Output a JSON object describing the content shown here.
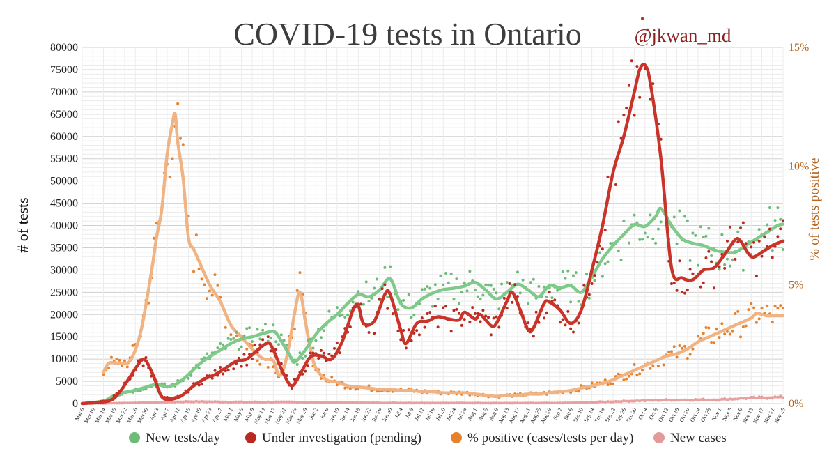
{
  "chart_data": {
    "type": "line",
    "title": "COVID-19 tests in Ontario",
    "handle": "@jkwan_md",
    "ylabel": "# of tests",
    "y2label": "% of tests positive",
    "ylim": [
      0,
      80000
    ],
    "y2lim": [
      0,
      15
    ],
    "yticks": [
      0,
      5000,
      10000,
      15000,
      20000,
      25000,
      30000,
      35000,
      40000,
      45000,
      50000,
      55000,
      60000,
      65000,
      70000,
      75000,
      80000
    ],
    "y2ticks": [
      {
        "value": 0,
        "label": "0%"
      },
      {
        "value": 5,
        "label": "5%"
      },
      {
        "value": 10,
        "label": "10%"
      },
      {
        "value": 15,
        "label": "15%"
      }
    ],
    "x_range_days": [
      0,
      264
    ],
    "xticks": [
      {
        "day": 0,
        "label": "Mar 6"
      },
      {
        "day": 4,
        "label": "Mar 10"
      },
      {
        "day": 8,
        "label": "Mar 14"
      },
      {
        "day": 12,
        "label": "Mar 18"
      },
      {
        "day": 16,
        "label": "Mar 22"
      },
      {
        "day": 20,
        "label": "Mar 26"
      },
      {
        "day": 24,
        "label": "Mar 30"
      },
      {
        "day": 28,
        "label": "Apr 3"
      },
      {
        "day": 32,
        "label": "Apr 7"
      },
      {
        "day": 36,
        "label": "Apr 11"
      },
      {
        "day": 40,
        "label": "Apr 15"
      },
      {
        "day": 44,
        "label": "Apr 19"
      },
      {
        "day": 48,
        "label": "Apr 23"
      },
      {
        "day": 52,
        "label": "Apr 27"
      },
      {
        "day": 56,
        "label": "May 1"
      },
      {
        "day": 60,
        "label": "May 5"
      },
      {
        "day": 64,
        "label": "May 9"
      },
      {
        "day": 68,
        "label": "May 13"
      },
      {
        "day": 72,
        "label": "May 17"
      },
      {
        "day": 76,
        "label": "May 21"
      },
      {
        "day": 80,
        "label": "May 25"
      },
      {
        "day": 84,
        "label": "May 29"
      },
      {
        "day": 88,
        "label": "Jun 2"
      },
      {
        "day": 92,
        "label": "Jun 6"
      },
      {
        "day": 96,
        "label": "Jun 10"
      },
      {
        "day": 100,
        "label": "Jun 14"
      },
      {
        "day": 104,
        "label": "Jun 18"
      },
      {
        "day": 108,
        "label": "Jun 22"
      },
      {
        "day": 112,
        "label": "Jun 26"
      },
      {
        "day": 116,
        "label": "Jun 30"
      },
      {
        "day": 120,
        "label": "Jul 4"
      },
      {
        "day": 124,
        "label": "Jul 8"
      },
      {
        "day": 128,
        "label": "Jul 12"
      },
      {
        "day": 132,
        "label": "Jul 16"
      },
      {
        "day": 136,
        "label": "Jul 20"
      },
      {
        "day": 140,
        "label": "Jul 24"
      },
      {
        "day": 144,
        "label": "Jul 28"
      },
      {
        "day": 148,
        "label": "Aug 1"
      },
      {
        "day": 152,
        "label": "Aug 5"
      },
      {
        "day": 156,
        "label": "Aug 9"
      },
      {
        "day": 160,
        "label": "Aug 13"
      },
      {
        "day": 164,
        "label": "Aug 17"
      },
      {
        "day": 168,
        "label": "Aug 21"
      },
      {
        "day": 172,
        "label": "Aug 25"
      },
      {
        "day": 176,
        "label": "Aug 29"
      },
      {
        "day": 180,
        "label": "Sep 2"
      },
      {
        "day": 184,
        "label": "Sep 6"
      },
      {
        "day": 188,
        "label": "Sep 10"
      },
      {
        "day": 192,
        "label": "Sep 14"
      },
      {
        "day": 196,
        "label": "Sep 18"
      },
      {
        "day": 200,
        "label": "Sep 22"
      },
      {
        "day": 204,
        "label": "Sep 26"
      },
      {
        "day": 208,
        "label": "Sep 30"
      },
      {
        "day": 212,
        "label": "Oct 4"
      },
      {
        "day": 216,
        "label": "Oct 8"
      },
      {
        "day": 220,
        "label": "Oct 12"
      },
      {
        "day": 224,
        "label": "Oct 16"
      },
      {
        "day": 228,
        "label": "Oct 20"
      },
      {
        "day": 232,
        "label": "Oct 24"
      },
      {
        "day": 236,
        "label": "Oct 28"
      },
      {
        "day": 240,
        "label": "Nov 1"
      },
      {
        "day": 244,
        "label": "Nov 5"
      },
      {
        "day": 248,
        "label": "Nov 9"
      },
      {
        "day": 252,
        "label": "Nov 13"
      },
      {
        "day": 256,
        "label": "Nov 17"
      },
      {
        "day": 260,
        "label": "Nov 21"
      },
      {
        "day": 264,
        "label": "Nov 25"
      }
    ],
    "series": [
      {
        "name": "New tests/day",
        "axis": "left",
        "color": "#7fc98a",
        "dot_color": "#6dbb78",
        "points": [
          [
            0,
            0
          ],
          [
            8,
            600
          ],
          [
            12,
            1800
          ],
          [
            16,
            2500
          ],
          [
            20,
            3000
          ],
          [
            24,
            3700
          ],
          [
            28,
            4300
          ],
          [
            32,
            3800
          ],
          [
            36,
            4600
          ],
          [
            40,
            6500
          ],
          [
            44,
            8800
          ],
          [
            48,
            10500
          ],
          [
            52,
            12000
          ],
          [
            56,
            13500
          ],
          [
            60,
            14500
          ],
          [
            64,
            15000
          ],
          [
            68,
            15700
          ],
          [
            72,
            16200
          ],
          [
            74,
            15000
          ],
          [
            78,
            11000
          ],
          [
            80,
            9300
          ],
          [
            84,
            12000
          ],
          [
            88,
            15500
          ],
          [
            92,
            18000
          ],
          [
            96,
            20000
          ],
          [
            100,
            22500
          ],
          [
            104,
            24500
          ],
          [
            108,
            24000
          ],
          [
            112,
            25500
          ],
          [
            116,
            28000
          ],
          [
            120,
            22500
          ],
          [
            124,
            21500
          ],
          [
            128,
            23500
          ],
          [
            132,
            24800
          ],
          [
            136,
            25600
          ],
          [
            140,
            25900
          ],
          [
            144,
            26400
          ],
          [
            148,
            27200
          ],
          [
            152,
            25500
          ],
          [
            156,
            23500
          ],
          [
            160,
            25000
          ],
          [
            164,
            26800
          ],
          [
            168,
            25500
          ],
          [
            172,
            24000
          ],
          [
            176,
            26500
          ],
          [
            180,
            26000
          ],
          [
            184,
            26500
          ],
          [
            188,
            25000
          ],
          [
            192,
            28500
          ],
          [
            196,
            32500
          ],
          [
            200,
            35500
          ],
          [
            204,
            38000
          ],
          [
            208,
            40200
          ],
          [
            212,
            39800
          ],
          [
            216,
            42000
          ],
          [
            218,
            43800
          ],
          [
            222,
            40000
          ],
          [
            226,
            37000
          ],
          [
            230,
            36000
          ],
          [
            234,
            35500
          ],
          [
            238,
            34500
          ],
          [
            242,
            34000
          ],
          [
            246,
            34000
          ],
          [
            250,
            35500
          ],
          [
            254,
            37000
          ],
          [
            258,
            38500
          ],
          [
            262,
            40000
          ],
          [
            264,
            40300
          ]
        ]
      },
      {
        "name": "Under investigation (pending)",
        "axis": "left",
        "color": "#c8342a",
        "dot_color": "#b8291f",
        "points": [
          [
            0,
            0
          ],
          [
            10,
            600
          ],
          [
            14,
            2500
          ],
          [
            18,
            6000
          ],
          [
            22,
            9500
          ],
          [
            24,
            9600
          ],
          [
            27,
            6000
          ],
          [
            30,
            1500
          ],
          [
            34,
            1000
          ],
          [
            38,
            2000
          ],
          [
            42,
            4000
          ],
          [
            46,
            5500
          ],
          [
            50,
            6500
          ],
          [
            54,
            8000
          ],
          [
            58,
            9500
          ],
          [
            62,
            10000
          ],
          [
            66,
            12000
          ],
          [
            70,
            13600
          ],
          [
            72,
            12000
          ],
          [
            76,
            6500
          ],
          [
            79,
            4000
          ],
          [
            82,
            6500
          ],
          [
            86,
            10500
          ],
          [
            90,
            10700
          ],
          [
            94,
            10000
          ],
          [
            98,
            14000
          ],
          [
            102,
            21000
          ],
          [
            104,
            22000
          ],
          [
            106,
            18000
          ],
          [
            110,
            18500
          ],
          [
            114,
            24500
          ],
          [
            116,
            24500
          ],
          [
            120,
            16500
          ],
          [
            122,
            13500
          ],
          [
            126,
            18000
          ],
          [
            130,
            18500
          ],
          [
            134,
            19500
          ],
          [
            138,
            19000
          ],
          [
            142,
            18800
          ],
          [
            144,
            20500
          ],
          [
            148,
            19000
          ],
          [
            150,
            20000
          ],
          [
            154,
            17500
          ],
          [
            156,
            18000
          ],
          [
            160,
            23000
          ],
          [
            162,
            25000
          ],
          [
            165,
            21000
          ],
          [
            168,
            16500
          ],
          [
            170,
            17000
          ],
          [
            174,
            22500
          ],
          [
            176,
            22800
          ],
          [
            180,
            21000
          ],
          [
            184,
            18000
          ],
          [
            188,
            21000
          ],
          [
            192,
            30000
          ],
          [
            196,
            40000
          ],
          [
            200,
            52000
          ],
          [
            204,
            60000
          ],
          [
            208,
            70000
          ],
          [
            210,
            75000
          ],
          [
            212,
            76000
          ],
          [
            214,
            72000
          ],
          [
            218,
            55000
          ],
          [
            222,
            30500
          ],
          [
            226,
            28200
          ],
          [
            230,
            27800
          ],
          [
            234,
            30000
          ],
          [
            238,
            30500
          ],
          [
            242,
            33500
          ],
          [
            246,
            36800
          ],
          [
            248,
            36500
          ],
          [
            252,
            33000
          ],
          [
            256,
            34000
          ],
          [
            260,
            35500
          ],
          [
            264,
            36500
          ]
        ]
      },
      {
        "name": "% positive (cases/tests per day)",
        "axis": "right",
        "color": "#f0b384",
        "dot_color": "#e8822a",
        "points": [
          [
            8,
            1.3
          ],
          [
            10,
            1.7
          ],
          [
            14,
            1.7
          ],
          [
            18,
            1.8
          ],
          [
            22,
            3.0
          ],
          [
            26,
            5.5
          ],
          [
            28,
            7.0
          ],
          [
            30,
            8.2
          ],
          [
            32,
            10.5
          ],
          [
            34,
            11.8
          ],
          [
            35,
            12.2
          ],
          [
            36,
            11.0
          ],
          [
            38,
            9.5
          ],
          [
            40,
            7.0
          ],
          [
            42,
            6.5
          ],
          [
            44,
            6.0
          ],
          [
            48,
            5.0
          ],
          [
            52,
            4.3
          ],
          [
            56,
            3.3
          ],
          [
            60,
            2.8
          ],
          [
            64,
            2.3
          ],
          [
            68,
            1.9
          ],
          [
            72,
            1.8
          ],
          [
            74,
            1.2
          ],
          [
            76,
            1.5
          ],
          [
            78,
            2.5
          ],
          [
            80,
            3.8
          ],
          [
            82,
            4.7
          ],
          [
            84,
            3.5
          ],
          [
            86,
            2.3
          ],
          [
            88,
            1.5
          ],
          [
            92,
            1.0
          ],
          [
            96,
            0.9
          ],
          [
            100,
            0.75
          ],
          [
            104,
            0.7
          ],
          [
            108,
            0.65
          ],
          [
            112,
            0.6
          ],
          [
            116,
            0.6
          ],
          [
            120,
            0.55
          ],
          [
            124,
            0.55
          ],
          [
            128,
            0.5
          ],
          [
            132,
            0.5
          ],
          [
            136,
            0.45
          ],
          [
            140,
            0.45
          ],
          [
            144,
            0.45
          ],
          [
            148,
            0.4
          ],
          [
            152,
            0.35
          ],
          [
            156,
            0.3
          ],
          [
            160,
            0.35
          ],
          [
            164,
            0.35
          ],
          [
            168,
            0.4
          ],
          [
            172,
            0.4
          ],
          [
            176,
            0.45
          ],
          [
            180,
            0.5
          ],
          [
            184,
            0.55
          ],
          [
            188,
            0.65
          ],
          [
            192,
            0.75
          ],
          [
            196,
            0.85
          ],
          [
            200,
            1.0
          ],
          [
            204,
            1.2
          ],
          [
            208,
            1.4
          ],
          [
            212,
            1.6
          ],
          [
            216,
            1.8
          ],
          [
            220,
            2.0
          ],
          [
            224,
            2.1
          ],
          [
            228,
            2.3
          ],
          [
            232,
            2.6
          ],
          [
            236,
            2.8
          ],
          [
            240,
            3.0
          ],
          [
            244,
            3.2
          ],
          [
            248,
            3.4
          ],
          [
            252,
            3.6
          ],
          [
            254,
            3.8
          ],
          [
            256,
            3.75
          ],
          [
            258,
            3.7
          ],
          [
            262,
            3.7
          ],
          [
            264,
            3.7
          ]
        ]
      },
      {
        "name": "New cases",
        "axis": "left",
        "color": "#e8a0a0",
        "dot_color": "#e39a9a",
        "points": [
          [
            0,
            0
          ],
          [
            20,
            150
          ],
          [
            40,
            450
          ],
          [
            60,
            350
          ],
          [
            80,
            350
          ],
          [
            100,
            200
          ],
          [
            120,
            130
          ],
          [
            140,
            120
          ],
          [
            160,
            100
          ],
          [
            180,
            120
          ],
          [
            200,
            450
          ],
          [
            220,
            800
          ],
          [
            240,
            900
          ],
          [
            250,
            1200
          ],
          [
            260,
            1400
          ],
          [
            264,
            1400
          ]
        ]
      }
    ],
    "legend_position": "bottom",
    "grid": true
  }
}
